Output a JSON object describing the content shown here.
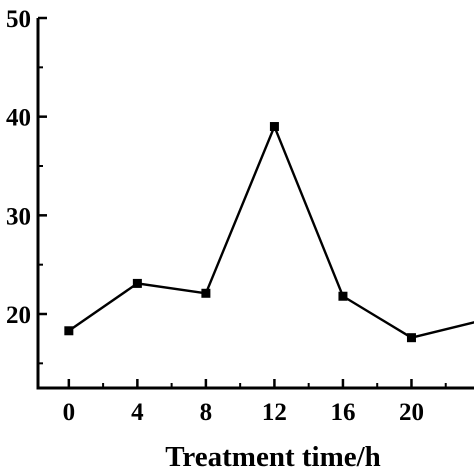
{
  "chart_data": {
    "type": "line",
    "title": "",
    "xlabel": "Treatment time/h",
    "ylabel": "",
    "x": [
      0,
      4,
      8,
      12,
      16,
      20,
      24
    ],
    "series": [
      {
        "values": [
          18.3,
          23.1,
          22.1,
          39.0,
          21.8,
          17.6,
          19.3
        ]
      }
    ],
    "x_ticks": [
      "0",
      "4",
      "8",
      "12",
      "16",
      "20"
    ],
    "y_ticks": [
      "50",
      "40",
      "30",
      "20"
    ],
    "y_tick_values": [
      50,
      40,
      30,
      20
    ],
    "xlim": [
      -1.8,
      24
    ],
    "ylim": [
      12.5,
      50
    ],
    "grid": false,
    "colors": {
      "line": "#000000",
      "marker": "#000000",
      "axis": "#000000"
    }
  }
}
